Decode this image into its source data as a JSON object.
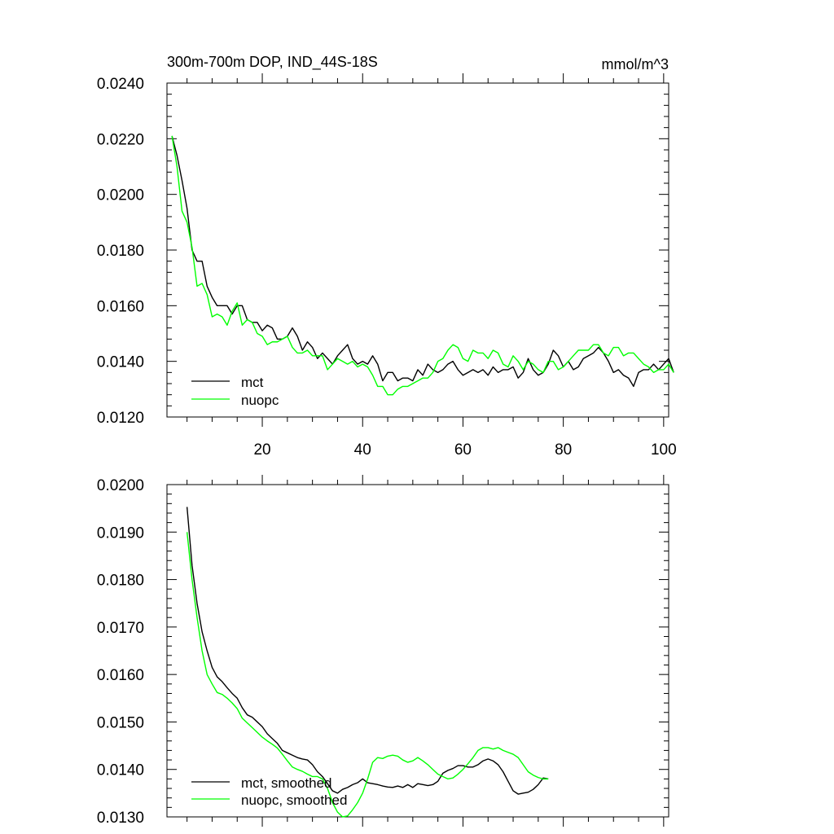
{
  "chart_data": [
    {
      "type": "line",
      "title": "300m-700m DOP, IND_44S-18S",
      "units": "mmol/m^3",
      "xlim": [
        1,
        101
      ],
      "ylim": [
        0.012,
        0.024
      ],
      "xticks": [
        20,
        40,
        60,
        80,
        100
      ],
      "yticks": [
        "0.0120",
        "0.0140",
        "0.0160",
        "0.0180",
        "0.0200",
        "0.0220",
        "0.0240"
      ],
      "ytick_values": [
        0.012,
        0.014,
        0.016,
        0.018,
        0.02,
        0.022,
        0.024
      ],
      "legend_position": "bottom-left",
      "series": [
        {
          "name": "mct",
          "color": "#000000",
          "x_start": 2,
          "values": [
            0.0221,
            0.0214,
            0.0205,
            0.0195,
            0.018,
            0.0176,
            0.0176,
            0.0167,
            0.0163,
            0.016,
            0.016,
            0.016,
            0.0157,
            0.016,
            0.016,
            0.0155,
            0.0154,
            0.0154,
            0.0151,
            0.0153,
            0.0152,
            0.0148,
            0.0148,
            0.0149,
            0.0152,
            0.0149,
            0.0144,
            0.0147,
            0.0145,
            0.0141,
            0.0143,
            0.0141,
            0.0139,
            0.0142,
            0.0144,
            0.0146,
            0.0141,
            0.0139,
            0.014,
            0.0139,
            0.0142,
            0.0139,
            0.0133,
            0.0136,
            0.0136,
            0.0133,
            0.0134,
            0.0134,
            0.0133,
            0.0137,
            0.0135,
            0.0139,
            0.0137,
            0.0136,
            0.0137,
            0.0139,
            0.014,
            0.0137,
            0.0135,
            0.0136,
            0.0137,
            0.0136,
            0.0137,
            0.0135,
            0.0138,
            0.0136,
            0.0137,
            0.0137,
            0.0138,
            0.0134,
            0.0136,
            0.0141,
            0.0137,
            0.0135,
            0.0136,
            0.0139,
            0.0144,
            0.0142,
            0.0138,
            0.014,
            0.0137,
            0.0138,
            0.0141,
            0.0142,
            0.0143,
            0.0145,
            0.0143,
            0.014,
            0.0136,
            0.0137,
            0.0135,
            0.0134,
            0.0131,
            0.0136,
            0.0137,
            0.0137,
            0.0139,
            0.0137,
            0.0139,
            0.0141,
            0.0136
          ]
        },
        {
          "name": "nuopc",
          "color": "#00ff00",
          "x_start": 2,
          "values": [
            0.0221,
            0.021,
            0.0194,
            0.019,
            0.0181,
            0.0167,
            0.0168,
            0.0164,
            0.0156,
            0.0157,
            0.0156,
            0.0153,
            0.0158,
            0.0161,
            0.0153,
            0.0155,
            0.0154,
            0.015,
            0.0149,
            0.0146,
            0.0147,
            0.0147,
            0.0148,
            0.0149,
            0.0145,
            0.0143,
            0.0143,
            0.0144,
            0.0142,
            0.0142,
            0.0142,
            0.0137,
            0.0139,
            0.0141,
            0.014,
            0.0139,
            0.014,
            0.0138,
            0.0139,
            0.0138,
            0.0135,
            0.0131,
            0.0131,
            0.0128,
            0.0128,
            0.013,
            0.0131,
            0.0131,
            0.0132,
            0.0133,
            0.0134,
            0.0134,
            0.0136,
            0.014,
            0.0141,
            0.0144,
            0.0146,
            0.0145,
            0.0141,
            0.014,
            0.0144,
            0.0143,
            0.0143,
            0.0141,
            0.0144,
            0.0143,
            0.0139,
            0.0138,
            0.0142,
            0.014,
            0.0137,
            0.014,
            0.0139,
            0.0137,
            0.0136,
            0.014,
            0.014,
            0.0137,
            0.0138,
            0.014,
            0.0142,
            0.0144,
            0.0144,
            0.0144,
            0.0146,
            0.0146,
            0.0143,
            0.0142,
            0.0145,
            0.0145,
            0.0142,
            0.0143,
            0.0143,
            0.0141,
            0.0139,
            0.0138,
            0.0136,
            0.0137,
            0.0137,
            0.0139,
            0.0136
          ]
        }
      ]
    },
    {
      "type": "line",
      "title": "",
      "xlim": [
        1,
        101
      ],
      "ylim": [
        0.013,
        0.02
      ],
      "xticks": [
        20,
        40,
        60,
        80,
        100
      ],
      "xticks_labeled": false,
      "yticks": [
        "0.0130",
        "0.0140",
        "0.0150",
        "0.0160",
        "0.0170",
        "0.0180",
        "0.0190",
        "0.0200"
      ],
      "ytick_values": [
        0.013,
        0.014,
        0.015,
        0.016,
        0.017,
        0.018,
        0.019,
        0.02
      ],
      "legend_position": "bottom-left",
      "series": [
        {
          "name": "mct, smoothed",
          "color": "#000000",
          "x_start": 5,
          "values": [
            0.01953,
            0.0183,
            0.0175,
            0.0169,
            0.0165,
            0.01615,
            0.01595,
            0.01585,
            0.01572,
            0.0156,
            0.0155,
            0.0153,
            0.01515,
            0.0151,
            0.015,
            0.0149,
            0.01475,
            0.01465,
            0.01455,
            0.0144,
            0.01435,
            0.0143,
            0.01425,
            0.01422,
            0.0142,
            0.0141,
            0.01395,
            0.01385,
            0.0137,
            0.01355,
            0.0135,
            0.01358,
            0.01362,
            0.01368,
            0.01372,
            0.0138,
            0.01372,
            0.0137,
            0.01368,
            0.01365,
            0.01363,
            0.01362,
            0.01365,
            0.01362,
            0.01368,
            0.01362,
            0.0137,
            0.01368,
            0.01366,
            0.01368,
            0.01375,
            0.01392,
            0.01398,
            0.01402,
            0.01408,
            0.01408,
            0.01405,
            0.01405,
            0.0141,
            0.01418,
            0.01422,
            0.01418,
            0.0141,
            0.01395,
            0.01375,
            0.01355,
            0.01348,
            0.0135,
            0.01352,
            0.01358,
            0.01368,
            0.01382,
            0.0138
          ]
        },
        {
          "name": "nuopc, smoothed",
          "color": "#00ff00",
          "x_start": 5,
          "values": [
            0.019,
            0.018,
            0.0172,
            0.0165,
            0.016,
            0.0158,
            0.01562,
            0.01558,
            0.0155,
            0.0154,
            0.01528,
            0.01508,
            0.01498,
            0.01488,
            0.01478,
            0.01468,
            0.0146,
            0.01453,
            0.01445,
            0.01432,
            0.01418,
            0.01405,
            0.014,
            0.01396,
            0.0139,
            0.01385,
            0.01385,
            0.0138,
            0.0136,
            0.0133,
            0.0131,
            0.013,
            0.01302,
            0.01315,
            0.0133,
            0.0135,
            0.0138,
            0.01415,
            0.01425,
            0.01423,
            0.01428,
            0.0143,
            0.01428,
            0.0142,
            0.01415,
            0.01418,
            0.01425,
            0.01418,
            0.0141,
            0.014,
            0.0139,
            0.01385,
            0.0138,
            0.01382,
            0.0139,
            0.014,
            0.01412,
            0.01425,
            0.0144,
            0.01446,
            0.01446,
            0.01443,
            0.01446,
            0.0144,
            0.01436,
            0.01432,
            0.01425,
            0.0141,
            0.01395,
            0.01388,
            0.01383,
            0.0138,
            0.0138
          ]
        }
      ]
    }
  ]
}
